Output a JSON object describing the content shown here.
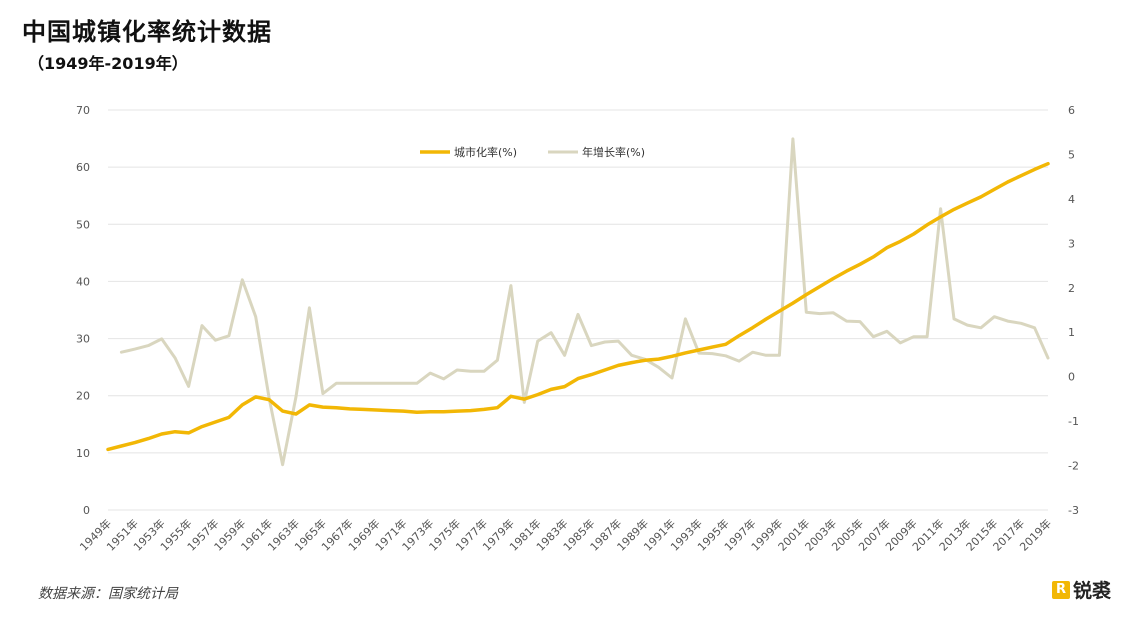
{
  "title": "中国城镇化率统计数据",
  "subtitle": "（1949年-2019年）",
  "source": "数据来源：国家统计局",
  "brand": {
    "mark": "R",
    "name": "锐裘"
  },
  "colors": {
    "urbanization": "#f2b705",
    "growth": "#d9d6bf",
    "grid": "#e4e4e4"
  },
  "chart_data": {
    "type": "line",
    "x": [
      1949,
      1950,
      1951,
      1952,
      1953,
      1954,
      1955,
      1956,
      1957,
      1958,
      1959,
      1960,
      1961,
      1962,
      1963,
      1964,
      1965,
      1966,
      1967,
      1968,
      1969,
      1970,
      1971,
      1972,
      1973,
      1974,
      1975,
      1976,
      1977,
      1978,
      1979,
      1980,
      1981,
      1982,
      1983,
      1984,
      1985,
      1986,
      1987,
      1988,
      1989,
      1990,
      1991,
      1992,
      1993,
      1994,
      1995,
      1996,
      1997,
      1998,
      1999,
      2000,
      2001,
      2002,
      2003,
      2004,
      2005,
      2006,
      2007,
      2008,
      2009,
      2010,
      2011,
      2012,
      2013,
      2014,
      2015,
      2016,
      2017,
      2018,
      2019
    ],
    "x_tick_labels": [
      "1949年",
      "1951年",
      "1953年",
      "1955年",
      "1957年",
      "1959年",
      "1961年",
      "1963年",
      "1965年",
      "1967年",
      "1969年",
      "1971年",
      "1973年",
      "1975年",
      "1977年",
      "1979年",
      "1981年",
      "1983年",
      "1985年",
      "1987年",
      "1989年",
      "1991年",
      "1993年",
      "1995年",
      "1997年",
      "1999年",
      "2001年",
      "2003年",
      "2005年",
      "2007年",
      "2009年",
      "2011年",
      "2013年",
      "2015年",
      "2017年",
      "2019年"
    ],
    "y_left": {
      "lim": [
        0,
        70
      ],
      "ticks": [
        "0",
        "10",
        "20",
        "30",
        "40",
        "50",
        "60",
        "70"
      ]
    },
    "y_right": {
      "lim": [
        -3,
        6
      ],
      "ticks": [
        "-3",
        "-2",
        "-1",
        "0",
        "1",
        "2",
        "3",
        "4",
        "5",
        "6"
      ]
    },
    "legend": {
      "position": "top-center"
    },
    "series": [
      {
        "name": "城市化率(%)",
        "axis": "left",
        "values": [
          10.6,
          11.2,
          11.8,
          12.5,
          13.3,
          13.7,
          13.5,
          14.6,
          15.4,
          16.2,
          18.4,
          19.8,
          19.3,
          17.3,
          16.8,
          18.4,
          18.0,
          17.9,
          17.7,
          17.6,
          17.5,
          17.4,
          17.3,
          17.1,
          17.2,
          17.2,
          17.3,
          17.4,
          17.6,
          17.9,
          19.9,
          19.4,
          20.2,
          21.1,
          21.6,
          23.0,
          23.7,
          24.5,
          25.3,
          25.8,
          26.2,
          26.4,
          26.9,
          27.5,
          28.0,
          28.5,
          29.0,
          30.5,
          31.9,
          33.4,
          34.8,
          36.2,
          37.7,
          39.1,
          40.5,
          41.8,
          43.0,
          44.3,
          45.9,
          47.0,
          48.3,
          49.9,
          51.3,
          52.6,
          53.7,
          54.8,
          56.1,
          57.4,
          58.5,
          59.6,
          60.6
        ]
      },
      {
        "name": "年增长率(%)",
        "axis": "right",
        "values": [
          null,
          0.55,
          0.62,
          0.7,
          0.85,
          0.42,
          -0.22,
          1.15,
          0.82,
          0.92,
          2.18,
          1.35,
          -0.48,
          -1.98,
          -0.45,
          1.55,
          -0.38,
          -0.15,
          -0.15,
          -0.15,
          -0.15,
          -0.15,
          -0.15,
          -0.15,
          0.08,
          -0.05,
          0.15,
          0.12,
          0.12,
          0.37,
          2.05,
          -0.58,
          0.8,
          0.99,
          0.48,
          1.4,
          0.7,
          0.78,
          0.8,
          0.48,
          0.39,
          0.21,
          -0.03,
          1.3,
          0.53,
          0.52,
          0.47,
          0.35,
          0.55,
          0.48,
          0.48,
          5.35,
          1.45,
          1.42,
          1.44,
          1.25,
          1.24,
          0.9,
          1.02,
          0.76,
          0.9,
          0.9,
          3.78,
          1.3,
          1.16,
          1.1,
          1.35,
          1.25,
          1.2,
          1.1,
          0.42
        ]
      }
    ]
  }
}
